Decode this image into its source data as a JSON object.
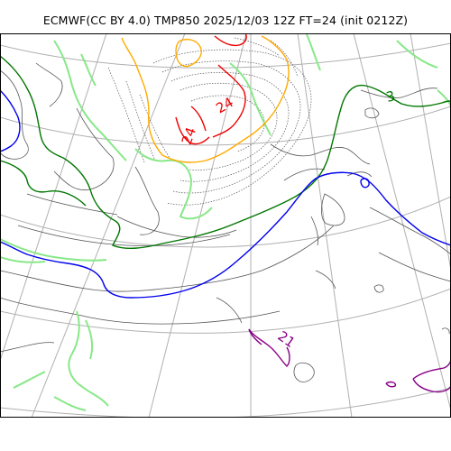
{
  "map": {
    "title": "ECMWF(CC BY 4.0) TMP850 2025/12/03 12Z FT=24 (init 0212Z)",
    "colors": {
      "grid": "#b0b0b0",
      "coastline": "#555555",
      "isotherm_zero": "#0000ee",
      "isotherm_3": "#007700",
      "isotherm_warm": "#ffaa00",
      "isotherm_hot": "#ee0000",
      "isotherm_minus21": "#880088",
      "isotherm_light": "#88e888"
    },
    "contour_labels": [
      {
        "id": "label-3",
        "text": "3",
        "color": "#007700"
      },
      {
        "id": "label-24-west",
        "text": "24",
        "color": "#ee0000"
      },
      {
        "id": "label-24-center",
        "text": "24",
        "color": "#ee0000"
      },
      {
        "id": "label-21",
        "text": "21",
        "color": "#880088"
      }
    ]
  }
}
